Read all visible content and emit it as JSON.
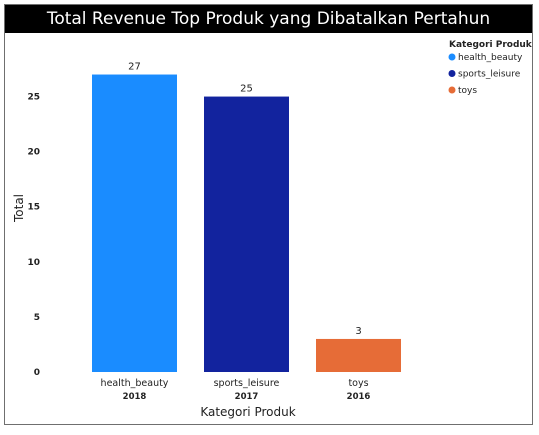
{
  "chart_data": {
    "type": "bar",
    "title": "Total Revenue Top Produk yang Dibatalkan Pertahun",
    "xlabel": "Kategori Produk",
    "ylabel": "Total",
    "categories": [
      "health_beauty",
      "sports_leisure",
      "toys"
    ],
    "years": [
      "2018",
      "2017",
      "2016"
    ],
    "values": [
      27,
      25,
      3
    ],
    "colors": [
      "#1a8cff",
      "#12239e",
      "#e66c37"
    ],
    "yticks": [
      0,
      5,
      10,
      15,
      20,
      25
    ],
    "ylim": [
      0,
      28.5
    ],
    "grid": false,
    "legend": {
      "title": "Kategori Produk",
      "placement": "top-right",
      "entries": [
        "health_beauty",
        "sports_leisure",
        "toys"
      ]
    }
  }
}
